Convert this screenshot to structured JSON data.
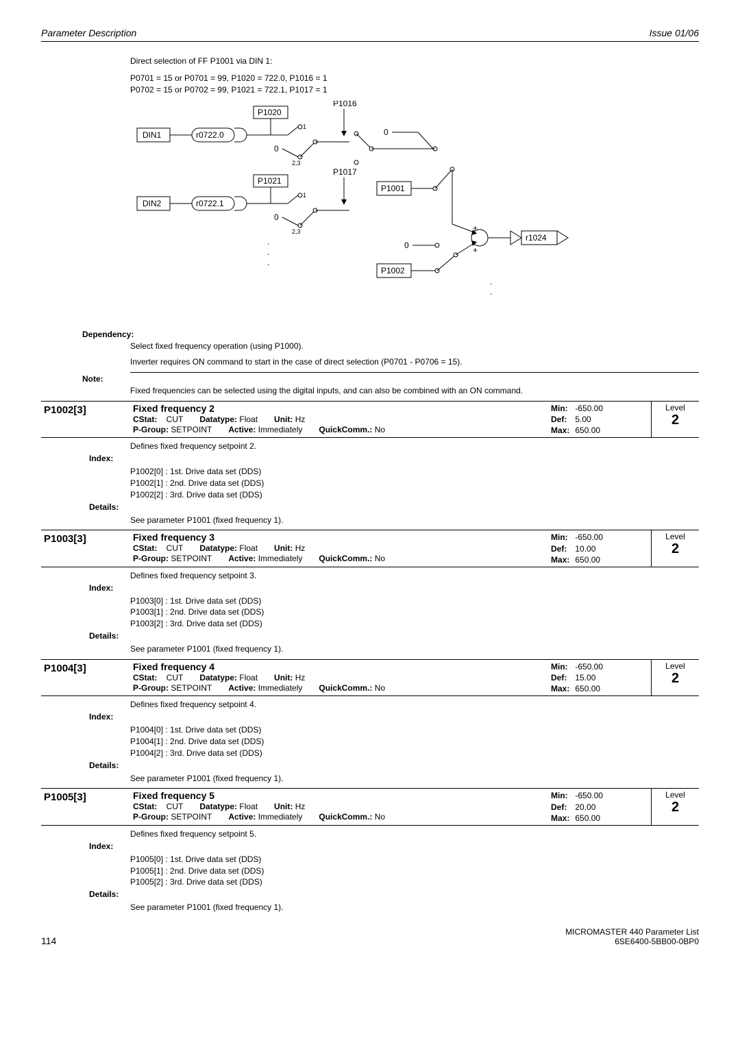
{
  "header": {
    "left": "Parameter Description",
    "right": "Issue 01/06"
  },
  "intro": {
    "lead": "Direct selection of FF P1001 via DIN 1:",
    "lines": [
      "P0701 = 15 or P0701 = 99, P1020 = 722.0, P1016 = 1",
      "P0702 = 15 or P0702 = 99, P1021 = 722.1, P1017 = 1"
    ]
  },
  "diagram": {
    "din1": "DIN1",
    "r07220": "r0722.0",
    "p1020": "P1020",
    "p1016": "P1016",
    "din2": "DIN2",
    "r07221": "r0722.1",
    "p1021": "P1021",
    "p1017": "P1017",
    "p1001": "P1001",
    "p1002": "P1002",
    "r1024": "r1024",
    "zero": "0",
    "one": "1",
    "twothree": "2,3",
    "dots": ".",
    "colors": {
      "line": "#000000",
      "fill": "#ffffff",
      "bg": "#ffffff"
    }
  },
  "dependency": {
    "label": "Dependency:",
    "line1": "Select fixed frequency operation (using P1000).",
    "line2": "Inverter requires ON command to start in the case of direct selection (P0701 - P0706 = 15)."
  },
  "note": {
    "label": "Note:",
    "text": "Fixed frequencies can be selected using the digital inputs, and can also be combined with an ON command."
  },
  "labels": {
    "cstat": "CStat:",
    "datatype": "Datatype:",
    "unit": "Unit:",
    "pgroup": "P-Group:",
    "active": "Active:",
    "quick": "QuickComm.:",
    "min": "Min:",
    "def": "Def:",
    "max": "Max:",
    "level": "Level",
    "index": "Index:",
    "details": "Details:"
  },
  "common": {
    "cstat": "CUT",
    "datatype": "Float",
    "unit": "Hz",
    "pgroup": "SETPOINT",
    "active": "Immediately",
    "quick": "No",
    "min": "-650.00",
    "max": "650.00"
  },
  "params": [
    {
      "id": "P1002[3]",
      "title": "Fixed frequency 2",
      "def": "5.00",
      "level": "2",
      "desc": "Defines fixed frequency setpoint 2.",
      "idx": [
        "P1002[0]  :  1st. Drive data set (DDS)",
        "P1002[1]  :  2nd. Drive data set (DDS)",
        "P1002[2]  :  3rd. Drive data set (DDS)"
      ],
      "details": "See  parameter P1001 (fixed frequency 1)."
    },
    {
      "id": "P1003[3]",
      "title": "Fixed frequency 3",
      "def": "10.00",
      "level": "2",
      "desc": "Defines fixed frequency setpoint 3.",
      "idx": [
        "P1003[0]  :  1st. Drive data set (DDS)",
        "P1003[1]  :  2nd. Drive data set (DDS)",
        "P1003[2]  :  3rd. Drive data set (DDS)"
      ],
      "details": "See parameter P1001 (fixed frequency 1)."
    },
    {
      "id": "P1004[3]",
      "title": "Fixed frequency 4",
      "def": "15.00",
      "level": "2",
      "desc": "Defines fixed frequency setpoint 4.",
      "idx": [
        "P1004[0]  :  1st. Drive data set (DDS)",
        "P1004[1]  :  2nd. Drive data set (DDS)",
        "P1004[2]  :  3rd. Drive data set (DDS)"
      ],
      "details": "See parameter P1001 (fixed frequency 1)."
    },
    {
      "id": "P1005[3]",
      "title": "Fixed frequency 5",
      "def": "20.00",
      "level": "2",
      "desc": "Defines fixed frequency setpoint 5.",
      "idx": [
        "P1005[0]  :  1st. Drive data set (DDS)",
        "P1005[1]  :  2nd. Drive data set (DDS)",
        "P1005[2]  :  3rd. Drive data set (DDS)"
      ],
      "details": "See parameter P1001 (fixed frequency 1)."
    }
  ],
  "footer": {
    "page": "114",
    "r1": "MICROMASTER 440    Parameter List",
    "r2": "6SE6400-5BB00-0BP0"
  }
}
